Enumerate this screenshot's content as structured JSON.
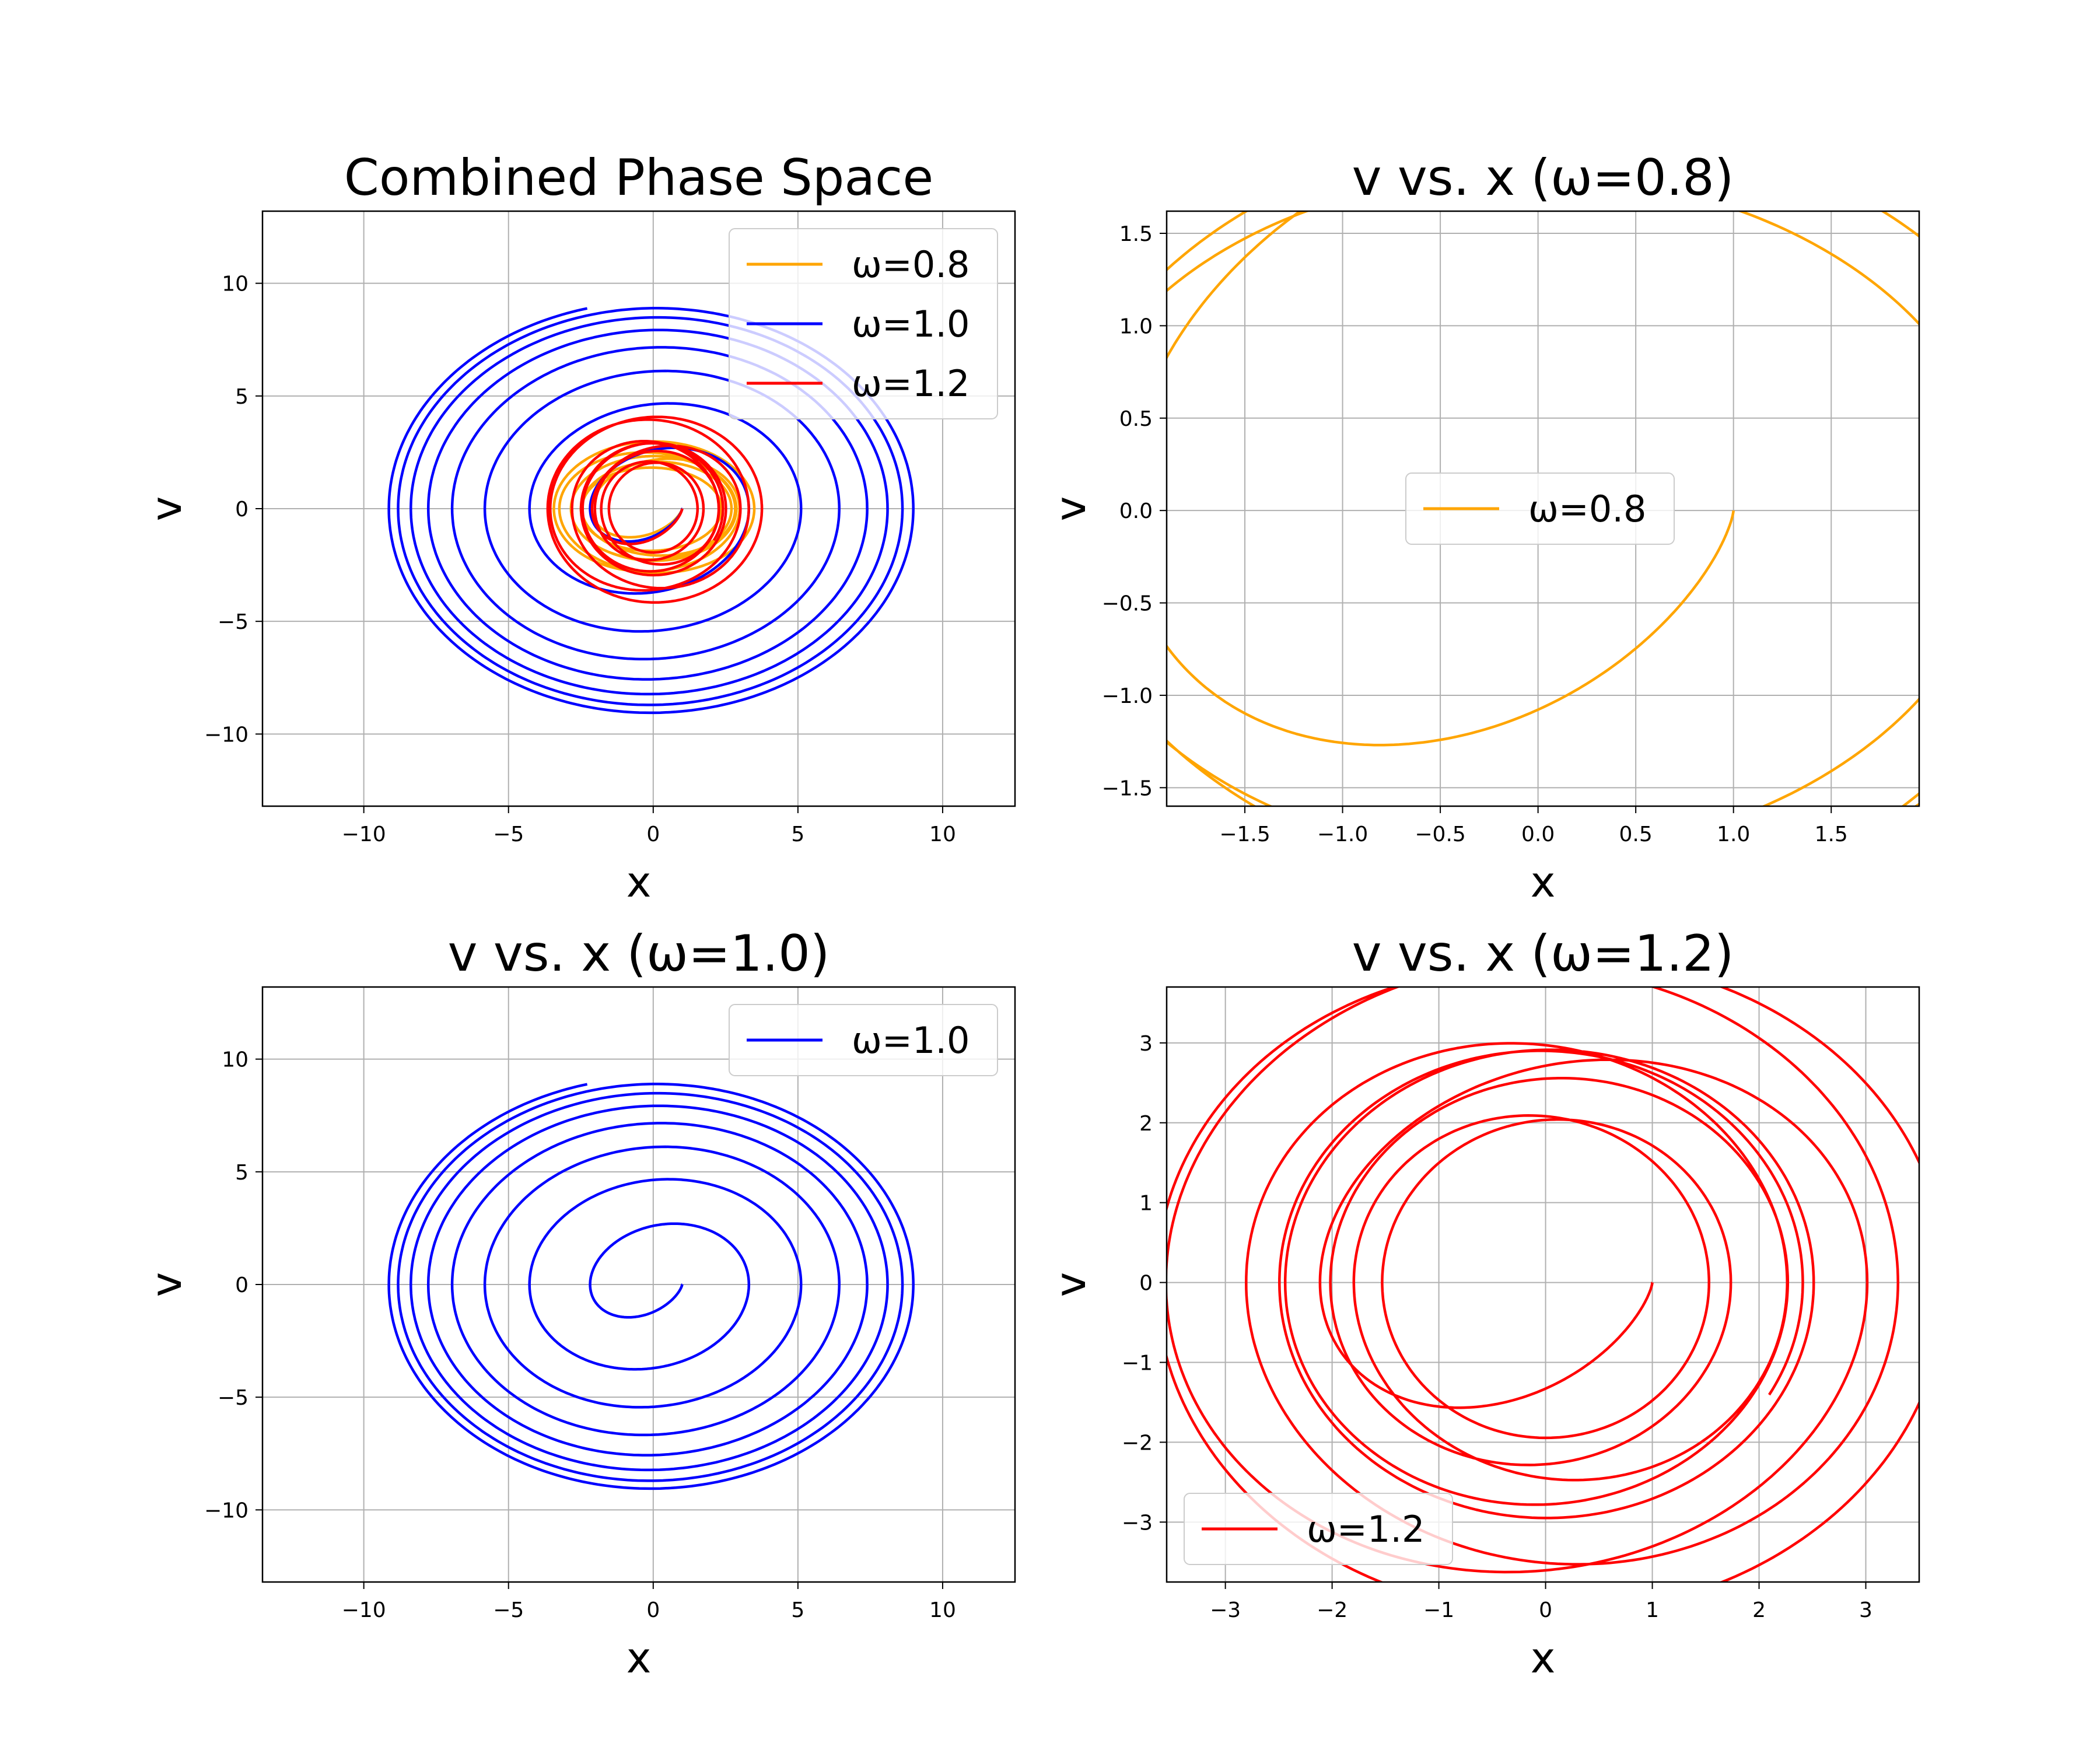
{
  "figure": {
    "background": "#ffffff"
  },
  "chart_data": [
    {
      "type": "line",
      "title": "Combined Phase Space",
      "xlabel": "x",
      "ylabel": "v",
      "xlim": [
        -13.5,
        12.5
      ],
      "ylim": [
        -13.2,
        13.2
      ],
      "xticks": [
        -10,
        -5,
        0,
        5,
        10
      ],
      "yticks": [
        -10,
        -5,
        0,
        5,
        10
      ],
      "xtick_labels": [
        "−10",
        "−5",
        "0",
        "5",
        "10"
      ],
      "ytick_labels": [
        "−10",
        "−5",
        "0",
        "5",
        "10"
      ],
      "grid": true,
      "legend_position": "top-right",
      "series": [
        {
          "name": "ω=0.8",
          "omega": 0.8,
          "color": "#FFA500"
        },
        {
          "name": "ω=1.0",
          "omega": 1.0,
          "color": "#0000FF"
        },
        {
          "name": "ω=1.2",
          "omega": 1.2,
          "color": "#FF0000"
        }
      ]
    },
    {
      "type": "line",
      "title": "v vs. x (ω=0.8)",
      "xlabel": "x",
      "ylabel": "v",
      "xlim": [
        -1.9,
        1.95
      ],
      "ylim": [
        -1.6,
        1.62
      ],
      "xticks": [
        -1.5,
        -1.0,
        -0.5,
        0.0,
        0.5,
        1.0,
        1.5
      ],
      "yticks": [
        -1.5,
        -1.0,
        -0.5,
        0.0,
        0.5,
        1.0,
        1.5
      ],
      "xtick_labels": [
        "−1.5",
        "−1.0",
        "−0.5",
        "0.0",
        "0.5",
        "1.0",
        "1.5"
      ],
      "ytick_labels": [
        "−1.5",
        "−1.0",
        "−0.5",
        "0.0",
        "0.5",
        "1.0",
        "1.5"
      ],
      "grid": true,
      "legend_position": "center-right",
      "series": [
        {
          "name": "ω=0.8",
          "omega": 0.8,
          "color": "#FFA500"
        }
      ]
    },
    {
      "type": "line",
      "title": "v vs. x (ω=1.0)",
      "xlabel": "x",
      "ylabel": "v",
      "xlim": [
        -13.5,
        12.5
      ],
      "ylim": [
        -13.2,
        13.2
      ],
      "xticks": [
        -10,
        -5,
        0,
        5,
        10
      ],
      "yticks": [
        -10,
        -5,
        0,
        5,
        10
      ],
      "xtick_labels": [
        "−10",
        "−5",
        "0",
        "5",
        "10"
      ],
      "ytick_labels": [
        "−10",
        "−5",
        "0",
        "5",
        "10"
      ],
      "grid": true,
      "legend_position": "top-right",
      "series": [
        {
          "name": "ω=1.0",
          "omega": 1.0,
          "color": "#0000FF"
        }
      ]
    },
    {
      "type": "line",
      "title": "v vs. x (ω=1.2)",
      "xlabel": "x",
      "ylabel": "v",
      "xlim": [
        -3.55,
        3.5
      ],
      "ylim": [
        -3.75,
        3.7
      ],
      "xticks": [
        -3,
        -2,
        -1,
        0,
        1,
        2,
        3
      ],
      "yticks": [
        -3,
        -2,
        -1,
        0,
        1,
        2,
        3
      ],
      "xtick_labels": [
        "−3",
        "−2",
        "−1",
        "0",
        "1",
        "2",
        "3"
      ],
      "ytick_labels": [
        "−3",
        "−2",
        "−1",
        "0",
        "1",
        "2",
        "3"
      ],
      "grid": true,
      "legend_position": "lower-left",
      "series": [
        {
          "name": "ω=1.2",
          "omega": 1.2,
          "color": "#FF0000"
        }
      ]
    }
  ]
}
